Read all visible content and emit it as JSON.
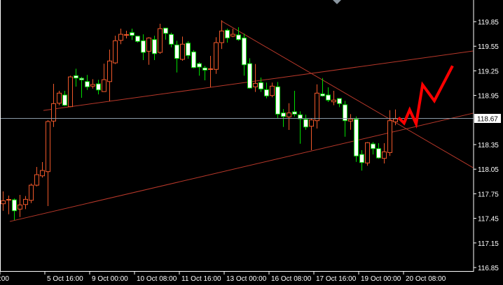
{
  "chart_data": {
    "type": "candlestick",
    "title": "",
    "xlabel": "",
    "ylabel": "",
    "ylim": [
      116.78,
      120.18
    ],
    "grid": false,
    "y_ticks": [
      "119.85",
      "119.55",
      "119.25",
      "118.95",
      "118.35",
      "118.05",
      "117.75",
      "117.45",
      "117.15",
      "116.85"
    ],
    "x_ticks": [
      {
        "index": -0.5,
        "label": ":00"
      },
      {
        "index": 7.5,
        "label": "5 Oct 16:00"
      },
      {
        "index": 15.5,
        "label": "9 Oct 00:00"
      },
      {
        "index": 23.5,
        "label": "10 Oct 08:00"
      },
      {
        "index": 31.5,
        "label": "11 Oct 16:00"
      },
      {
        "index": 39.5,
        "label": "13 Oct 00:00"
      },
      {
        "index": 47.5,
        "label": "16 Oct 08:00"
      },
      {
        "index": 55.5,
        "label": "17 Oct 16:00"
      },
      {
        "index": 63.5,
        "label": "19 Oct 00:00"
      },
      {
        "index": 71.5,
        "label": "20 Oct 08:00"
      }
    ],
    "current_price": "118.67",
    "colors": {
      "bull": "#f0582a",
      "bear": "#00dd00",
      "bear_fill": "#ffffff",
      "trendline": "#b8382a",
      "forecast": "#ff0000",
      "price_line": "#8a9aa8",
      "axis": "#ffffff",
      "background": "#000000"
    },
    "candles": {
      "open": [
        117.628,
        117.676,
        117.676,
        117.563,
        117.619,
        117.67,
        117.855,
        117.969,
        118.02,
        118.637,
        118.855,
        118.955,
        118.813,
        119.191,
        119.159,
        119.119,
        119.063,
        119.091,
        118.997,
        119.119,
        119.347,
        119.622,
        119.688,
        119.716,
        119.673,
        119.617,
        119.489,
        119.631,
        119.475,
        119.771,
        119.694,
        119.566,
        119.39,
        119.588,
        119.481,
        119.338,
        119.285,
        119.27,
        119.268,
        119.594,
        119.745,
        119.673,
        119.688,
        119.651,
        119.338,
        119.055,
        119.106,
        119.02,
        118.949,
        119.055,
        118.736,
        118.688,
        118.75,
        118.714,
        118.657,
        118.574,
        118.642,
        118.969,
        118.955,
        118.872,
        118.912,
        118.836,
        118.637,
        118.659,
        118.23,
        118.126,
        118.358,
        118.301,
        118.182,
        118.253,
        118.628
      ],
      "high": [
        117.779,
        117.728,
        117.693,
        117.736,
        117.722,
        117.875,
        118.077,
        118.137,
        118.648,
        119.091,
        119.006,
        119.006,
        119.191,
        119.276,
        119.176,
        119.2,
        119.148,
        119.14,
        119.338,
        119.509,
        119.679,
        119.765,
        119.739,
        119.765,
        119.673,
        119.696,
        119.66,
        119.679,
        119.824,
        119.771,
        119.716,
        119.617,
        119.668,
        119.611,
        119.503,
        119.355,
        119.31,
        119.432,
        119.66,
        119.867,
        119.765,
        119.765,
        119.782,
        119.705,
        119.404,
        119.333,
        119.168,
        119.106,
        119.106,
        119.114,
        118.784,
        118.855,
        119.006,
        118.756,
        118.714,
        118.665,
        119.085,
        119.162,
        119.049,
        119.006,
        118.912,
        118.884,
        118.722,
        118.693,
        118.282,
        118.381,
        118.381,
        118.367,
        118.367,
        118.77,
        118.778
      ],
      "low": [
        117.543,
        117.5,
        117.429,
        117.466,
        117.563,
        117.636,
        117.841,
        117.947,
        117.6,
        118.565,
        118.83,
        118.821,
        118.807,
        119.057,
        118.921,
        119.017,
        119.034,
        118.963,
        118.992,
        118.878,
        119.333,
        119.575,
        119.645,
        119.626,
        119.594,
        119.381,
        119.324,
        119.381,
        119.458,
        119.631,
        119.537,
        119.23,
        119.373,
        119.398,
        119.281,
        119.191,
        119.134,
        119.049,
        119.213,
        119.517,
        119.594,
        119.66,
        119.617,
        119.191,
        119.034,
        118.992,
        118.992,
        118.915,
        118.927,
        118.665,
        118.565,
        118.529,
        118.693,
        118.361,
        118.531,
        118.282,
        118.546,
        118.935,
        118.87,
        118.83,
        118.807,
        118.446,
        118.531,
        118.139,
        118.032,
        118.092,
        118.23,
        118.177,
        118.12,
        118.211,
        118.586
      ],
      "close": [
        117.665,
        117.681,
        117.543,
        117.614,
        117.682,
        117.855,
        117.983,
        118.034,
        118.631,
        118.85,
        118.978,
        118.83,
        119.176,
        119.162,
        119.14,
        119.055,
        119.083,
        119.017,
        119.142,
        119.37,
        119.617,
        119.696,
        119.692,
        119.682,
        119.609,
        119.475,
        119.651,
        119.46,
        119.765,
        119.707,
        119.575,
        119.401,
        119.575,
        119.438,
        119.29,
        119.296,
        119.259,
        119.275,
        119.594,
        119.736,
        119.651,
        119.696,
        119.631,
        119.324,
        119.04,
        119.097,
        119.029,
        118.944,
        119.063,
        118.722,
        118.693,
        118.736,
        118.722,
        118.665,
        118.565,
        118.651,
        118.978,
        118.944,
        118.893,
        118.893,
        118.85,
        118.642,
        118.659,
        118.211,
        118.131,
        118.373,
        118.301,
        118.188,
        118.262,
        118.642,
        118.665
      ]
    },
    "trendlines": [
      {
        "from": [
          1.25,
          117.412
        ],
        "to": [
          83.9,
          118.733
        ]
      },
      {
        "from": [
          7.25,
          118.767
        ],
        "to": [
          83.9,
          119.492
        ]
      },
      {
        "from": [
          39.0,
          119.858
        ],
        "to": [
          83.9,
          118.068
        ]
      }
    ],
    "forecast_path": [
      [
        70.6,
        118.68
      ],
      [
        71.6,
        118.612
      ],
      [
        72.6,
        118.774
      ],
      [
        73.75,
        118.603
      ],
      [
        74.9,
        119.08
      ],
      [
        77.0,
        118.884
      ],
      [
        80.25,
        119.31
      ]
    ]
  }
}
